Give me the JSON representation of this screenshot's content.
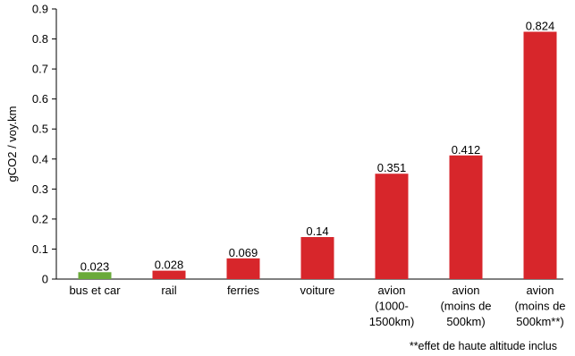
{
  "chart_data": {
    "type": "bar",
    "ylabel": "gCO2 / voy.km",
    "ylim": [
      0,
      0.9
    ],
    "yticks": [
      "0",
      "0.1",
      "0.2",
      "0.3",
      "0.4",
      "0.5",
      "0.6",
      "0.7",
      "0.8",
      "0.9"
    ],
    "grid": false,
    "categories": [
      [
        "bus et car"
      ],
      [
        "rail"
      ],
      [
        "ferries"
      ],
      [
        "voiture"
      ],
      [
        "avion",
        "(1000-",
        "1500km)"
      ],
      [
        "avion",
        "(moins de",
        "500km)"
      ],
      [
        "avion",
        "(moins de",
        "500km**)"
      ]
    ],
    "values": [
      0.023,
      0.028,
      0.069,
      0.14,
      0.351,
      0.412,
      0.824
    ],
    "value_labels": [
      "0.023",
      "0.028",
      "0.069",
      "0.14",
      "0.351",
      "0.412",
      "0.824"
    ],
    "bar_colors": [
      "#6aaa3a",
      "#d7262b",
      "#d7262b",
      "#d7262b",
      "#d7262b",
      "#d7262b",
      "#d7262b"
    ],
    "footnote": "**effet de haute altitude inclus"
  }
}
